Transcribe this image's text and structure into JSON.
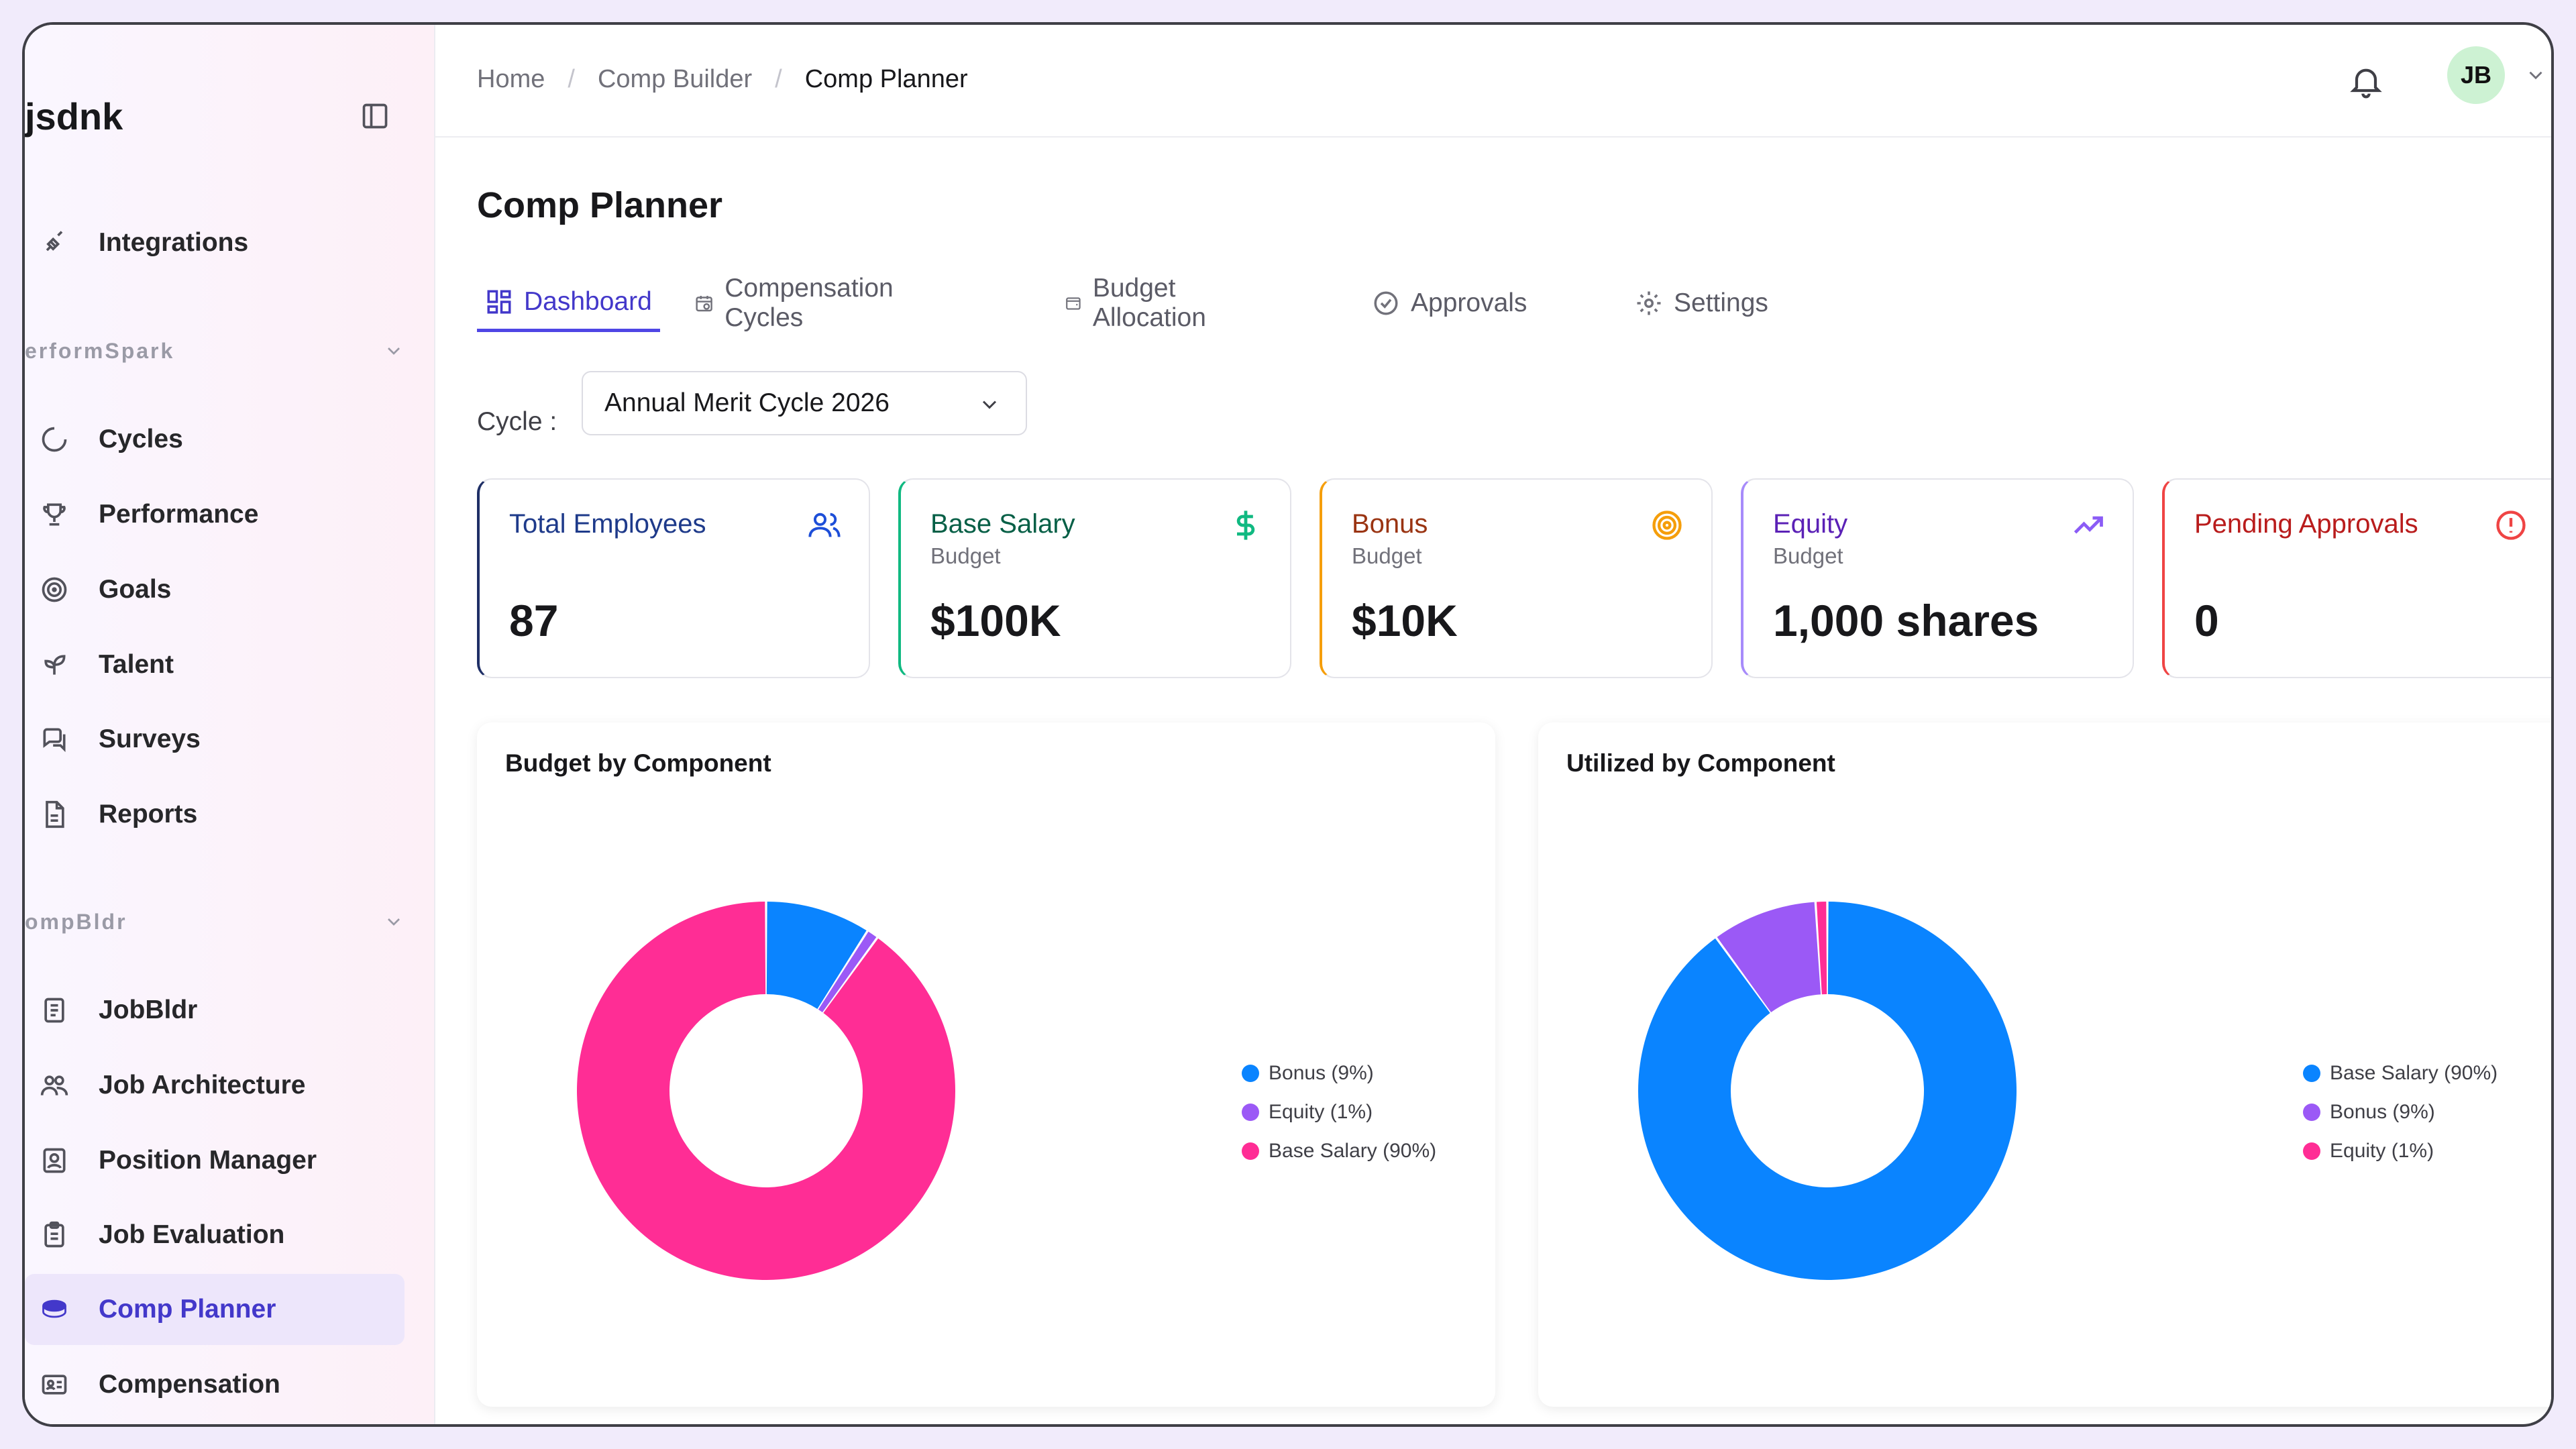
{
  "sidebar": {
    "brand": "jsdnk",
    "items_top": [
      {
        "label": "Integrations",
        "icon": "plug-icon"
      }
    ],
    "section1": {
      "label": "erformSpark"
    },
    "items_perform": [
      {
        "label": "Cycles",
        "icon": "cycle-icon"
      },
      {
        "label": "Performance",
        "icon": "trophy-icon"
      },
      {
        "label": "Goals",
        "icon": "target-icon"
      },
      {
        "label": "Talent",
        "icon": "sprout-icon"
      },
      {
        "label": "Surveys",
        "icon": "chat-icon"
      },
      {
        "label": "Reports",
        "icon": "file-icon"
      }
    ],
    "section2": {
      "label": "ompBldr"
    },
    "items_comp": [
      {
        "label": "JobBldr",
        "icon": "doc-icon"
      },
      {
        "label": "Job Architecture",
        "icon": "users-icon"
      },
      {
        "label": "Position Manager",
        "icon": "badge-icon"
      },
      {
        "label": "Job Evaluation",
        "icon": "clipboard-icon"
      },
      {
        "label": "Comp Planner",
        "icon": "coins-icon",
        "active": true
      },
      {
        "label": "Compensation",
        "icon": "id-card-icon"
      }
    ]
  },
  "header": {
    "breadcrumb": [
      "Home",
      "Comp Builder",
      "Comp Planner"
    ],
    "avatar_initials": "JB"
  },
  "page": {
    "title": "Comp Planner",
    "tabs": [
      {
        "label": "Dashboard",
        "icon": "grid-icon",
        "active": true
      },
      {
        "label": "Compensation Cycles",
        "icon": "calendar-icon"
      },
      {
        "label": "Budget Allocation",
        "icon": "wallet-icon"
      },
      {
        "label": "Approvals",
        "icon": "check-circle-icon"
      },
      {
        "label": "Settings",
        "icon": "gear-icon"
      }
    ],
    "cycle_label": "Cycle :",
    "cycle_value": "Annual Merit Cycle 2026"
  },
  "cards": [
    {
      "title": "Total Employees",
      "subtitle": "",
      "value": "87",
      "color": "#1e3a8a",
      "border": "#1f2f66",
      "icon": "users-icon"
    },
    {
      "title": "Base Salary",
      "subtitle": "Budget",
      "value": "$100K",
      "color": "#065f46",
      "border": "#10b981",
      "icon": "dollar-icon"
    },
    {
      "title": "Bonus",
      "subtitle": "Budget",
      "value": "$10K",
      "color": "#9a3412",
      "border": "#f59e0b",
      "icon": "target-icon"
    },
    {
      "title": "Equity",
      "subtitle": "Budget",
      "value": "1,000 shares",
      "color": "#5b21b6",
      "border": "#a78bfa",
      "icon": "trend-up-icon"
    },
    {
      "title": "Pending Approvals",
      "subtitle": "",
      "value": "0",
      "color": "#b91c1c",
      "border": "#ef4444",
      "icon": "alert-circle-icon"
    }
  ],
  "colors": {
    "blue": "#0a84ff",
    "purple": "#9b59f6",
    "pink": "#ff2d95"
  },
  "chart_data": [
    {
      "type": "pie",
      "title": "Budget by Component",
      "series": [
        {
          "name": "Bonus (9%)",
          "value": 9,
          "color": "#0a84ff"
        },
        {
          "name": "Equity (1%)",
          "value": 1,
          "color": "#9b59f6"
        },
        {
          "name": "Base Salary (90%)",
          "value": 90,
          "color": "#ff2d95"
        }
      ]
    },
    {
      "type": "pie",
      "title": "Utilized by Component",
      "series": [
        {
          "name": "Base Salary (90%)",
          "value": 90,
          "color": "#0a84ff"
        },
        {
          "name": "Bonus (9%)",
          "value": 9,
          "color": "#9b59f6"
        },
        {
          "name": "Equity (1%)",
          "value": 1,
          "color": "#ff2d95"
        }
      ]
    }
  ]
}
